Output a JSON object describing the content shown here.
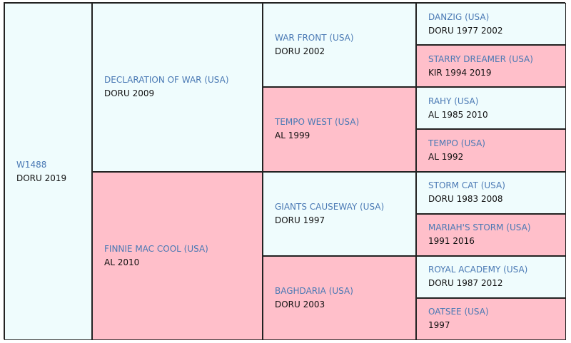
{
  "generations": [
    [
      {
        "name": "W1488",
        "details": "DORU 2019"
      }
    ],
    [
      {
        "name": "DECLARATION OF WAR (USA)",
        "details": "DORU 2009"
      },
      {
        "name": "FINNIE MAC COOL (USA)",
        "details": "AL 2010"
      }
    ],
    [
      {
        "name": "WAR FRONT (USA)",
        "details": "DORU 2002"
      },
      {
        "name": "TEMPO WEST (USA)",
        "details": "AL 1999"
      },
      {
        "name": "GIANTS CAUSEWAY (USA)",
        "details": "DORU 1997"
      },
      {
        "name": "BAGHDARIA (USA)",
        "details": "DORU 2003"
      }
    ],
    [
      {
        "name": "DANZIG (USA)",
        "details": "DORU 1977 2002"
      },
      {
        "name": "STARRY DREAMER (USA)",
        "details": "KIR 1994 2019"
      },
      {
        "name": "RAHY (USA)",
        "details": "AL 1985 2010"
      },
      {
        "name": "TEMPO (USA)",
        "details": "AL 1992"
      },
      {
        "name": "STORM CAT (USA)",
        "details": "DORU 1983 2008"
      },
      {
        "name": "MARIAH'S STORM (USA)",
        "details": "1991 2016"
      },
      {
        "name": "ROYAL ACADEMY (USA)",
        "details": "DORU 1987 2012"
      },
      {
        "name": "OATSEE (USA)",
        "details": "1997"
      }
    ]
  ]
}
